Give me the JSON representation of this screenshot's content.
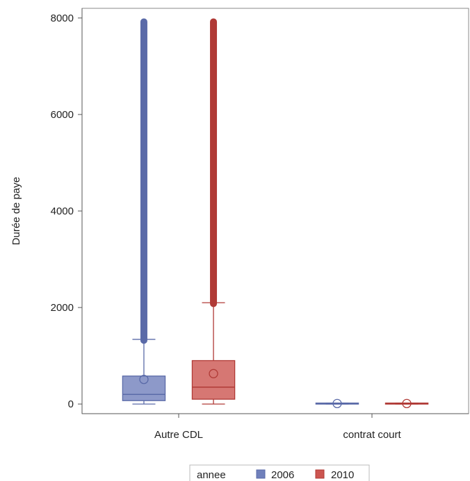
{
  "chart_data": {
    "type": "box",
    "ylabel": "Durée de paye",
    "ylim": [
      -200,
      8200
    ],
    "yticks": [
      0,
      2000,
      4000,
      6000,
      8000
    ],
    "categories": [
      "Autre CDL",
      "contrat court"
    ],
    "legend": {
      "title": "annee",
      "entries": [
        "2006",
        "2010"
      ],
      "placement": "bottom"
    },
    "series": [
      {
        "name": "2006",
        "color": "#5a6aa8",
        "fill": "#7080bb",
        "boxes": [
          {
            "category": "Autre CDL",
            "min": 0,
            "q1": 70,
            "median": 200,
            "q3": 580,
            "mean": 510,
            "whisker_high": 1340,
            "outlier_min": 1320,
            "outlier_max": 7920
          },
          {
            "category": "contrat court",
            "min": 0,
            "q1": 0,
            "median": 5,
            "q3": 20,
            "mean": 10,
            "whisker_high": 20,
            "outlier_min": null,
            "outlier_max": null
          }
        ]
      },
      {
        "name": "2010",
        "color": "#b03a36",
        "fill": "#cc5550",
        "boxes": [
          {
            "category": "Autre CDL",
            "min": 0,
            "q1": 100,
            "median": 350,
            "q3": 900,
            "mean": 630,
            "whisker_high": 2100,
            "outlier_min": 2080,
            "outlier_max": 7920
          },
          {
            "category": "contrat court",
            "min": 0,
            "q1": 0,
            "median": 5,
            "q3": 20,
            "mean": 10,
            "whisker_high": 20,
            "outlier_min": null,
            "outlier_max": null
          }
        ]
      }
    ]
  }
}
